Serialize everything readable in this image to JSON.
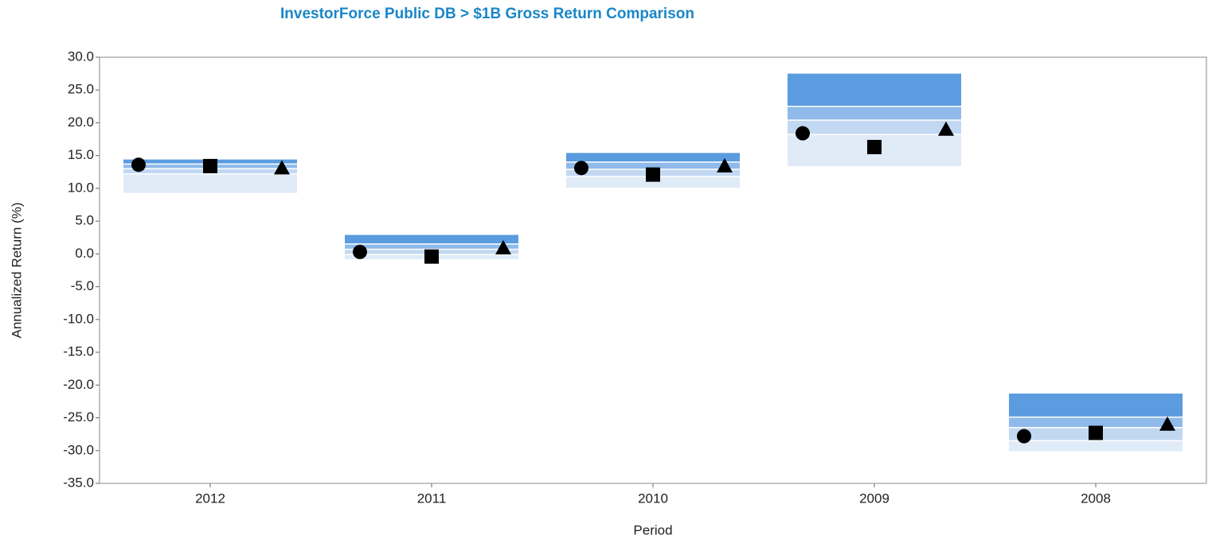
{
  "chart_data": {
    "type": "floating_band",
    "title": "InvestorForce Public DB > $1B Gross Return Comparison",
    "y_label": "Annualized Return (%)",
    "x_label": "Period",
    "categories": [
      "2012",
      "2011",
      "2010",
      "2009",
      "2008"
    ],
    "band_edges": [
      [
        14.4,
        2.9,
        15.4,
        27.5,
        -21.3
      ],
      [
        13.8,
        1.6,
        14.1,
        22.6,
        -24.8
      ],
      [
        13.1,
        0.8,
        13.0,
        20.5,
        -26.4
      ],
      [
        12.3,
        0.0,
        11.9,
        18.3,
        -28.4
      ],
      [
        9.3,
        -0.8,
        10.1,
        13.4,
        -30.1
      ]
    ],
    "band_colors": [
      "#5b9bdf",
      "#8fbaea",
      "#c2d8f2",
      "#e0ebf8"
    ],
    "series": [
      {
        "marker": "circle",
        "color": "#000000",
        "values": [
          13.6,
          0.3,
          13.1,
          18.4,
          -27.8
        ]
      },
      {
        "marker": "square",
        "color": "#000000",
        "values": [
          13.4,
          -0.4,
          12.1,
          16.3,
          -27.3
        ]
      },
      {
        "marker": "triangle",
        "color": "#000000",
        "values": [
          13.1,
          0.9,
          13.4,
          19.0,
          -26.0
        ]
      }
    ],
    "ylim": [
      -35,
      30
    ],
    "yticks": [
      {
        "value": 30,
        "label": "30.0"
      },
      {
        "value": 25,
        "label": "25.0"
      },
      {
        "value": 20,
        "label": "20.0"
      },
      {
        "value": 15,
        "label": "15.0"
      },
      {
        "value": 10,
        "label": "10.0"
      },
      {
        "value": 5,
        "label": "5.0"
      },
      {
        "value": 0,
        "label": "0.0"
      },
      {
        "value": -5,
        "label": "-5.0"
      },
      {
        "value": -10,
        "label": "-10.0"
      },
      {
        "value": -15,
        "label": "-15.0"
      },
      {
        "value": -20,
        "label": "-20.0"
      },
      {
        "value": -25,
        "label": "-25.0"
      },
      {
        "value": -30,
        "label": "-30.0"
      },
      {
        "value": -35,
        "label": "-35.0"
      }
    ]
  }
}
